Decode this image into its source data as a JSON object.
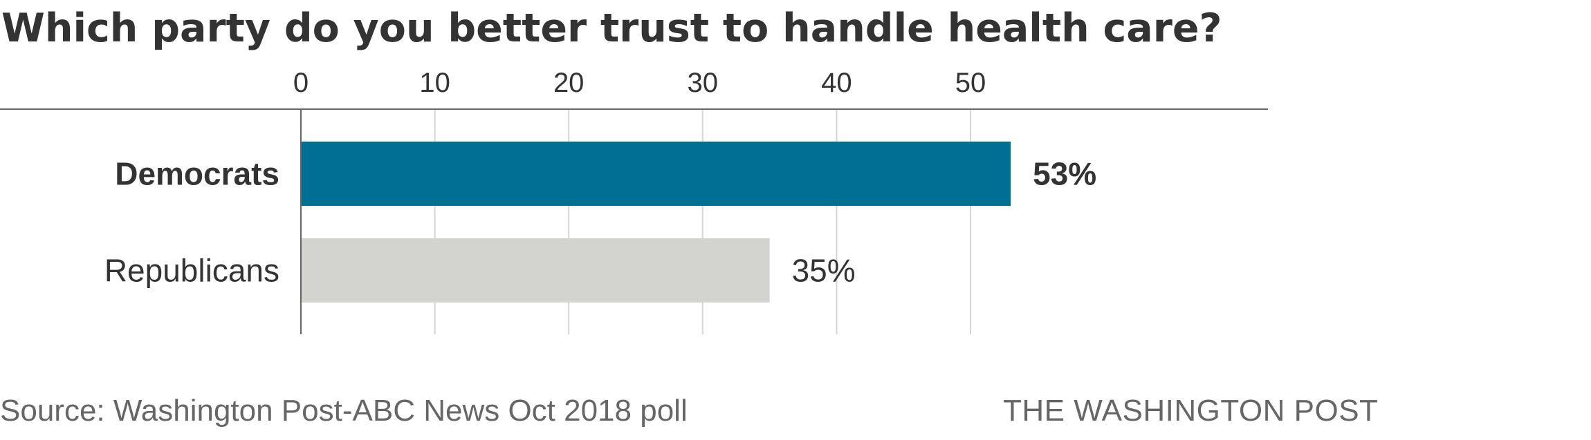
{
  "chart_data": {
    "type": "bar",
    "orientation": "horizontal",
    "title": "Which party do you better trust to handle health care?",
    "categories": [
      "Democrats",
      "Republicans"
    ],
    "values": [
      53,
      35
    ],
    "value_labels": [
      "53%",
      "35%"
    ],
    "bold_categories": [
      "Democrats"
    ],
    "xlim": [
      0,
      60
    ],
    "ticks": [
      0,
      10,
      20,
      30,
      40,
      50
    ],
    "tick_labels": [
      "0",
      "10",
      "20",
      "30",
      "40",
      "50"
    ],
    "grid": true,
    "colors": [
      "#006f94",
      "#d3d3cf"
    ]
  },
  "footer": {
    "source": "Source: Washington Post-ABC News Oct 2018 poll",
    "brand": "THE WASHINGTON POST"
  }
}
